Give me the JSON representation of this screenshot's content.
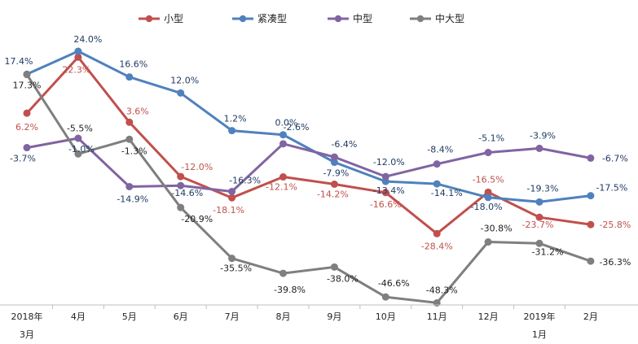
{
  "chart_data": {
    "type": "line",
    "categories": [
      "2018年\n3月",
      "4月",
      "5月",
      "6月",
      "7月",
      "8月",
      "9月",
      "10月",
      "11月",
      "12月",
      "2019年\n1月",
      "2月"
    ],
    "series": [
      {
        "name": "小型",
        "color": "#c0504d",
        "values": [
          6.2,
          22.3,
          3.6,
          -12.0,
          -18.1,
          -12.1,
          -14.2,
          -16.6,
          -28.4,
          -16.5,
          -23.7,
          -25.8
        ]
      },
      {
        "name": "紧凑型",
        "color": "#4f81bd",
        "values": [
          17.4,
          24.0,
          16.6,
          12.0,
          1.2,
          0.0,
          -7.9,
          -13.4,
          -14.1,
          -18.0,
          -19.3,
          -17.5
        ]
      },
      {
        "name": "中型",
        "color": "#8064a2",
        "values": [
          -3.7,
          -1.0,
          -14.9,
          -14.6,
          -16.3,
          -2.6,
          -6.4,
          -12.0,
          -8.4,
          -5.1,
          -3.9,
          -6.7
        ]
      },
      {
        "name": "中大型",
        "color": "#7f7f7f",
        "values": [
          17.3,
          -5.5,
          -1.3,
          -20.9,
          -35.5,
          -39.8,
          -38.0,
          -46.6,
          -48.3,
          -30.8,
          -31.2,
          -36.3
        ]
      }
    ],
    "data_labels": [
      [
        "6.2%",
        "22.3%",
        "3.6%",
        "-12.0%",
        "-18.1%",
        "-12.1%",
        "-14.2%",
        "-16.6%",
        "-28.4%",
        "-16.5%",
        "-23.7%",
        "-25.8%"
      ],
      [
        "17.4%",
        "24.0%",
        "16.6%",
        "12.0%",
        "1.2%",
        "0.0%",
        "-7.9%",
        "-13.4%",
        "-14.1%",
        "-18.0%",
        "-19.3%",
        "-17.5%"
      ],
      [
        "-3.7%",
        "-1.0%",
        "-14.9%",
        "-14.6%",
        "-16.3%",
        "-2.6%",
        "-6.4%",
        "-12.0%",
        "-8.4%",
        "-5.1%",
        "-3.9%",
        "-6.7%"
      ],
      [
        "17.3%",
        "-5.5%",
        "-1.3%",
        "-20.9%",
        "-35.5%",
        "-39.8%",
        "-38.0%",
        "-46.6%",
        "-48.3%",
        "-30.8%",
        "-31.2%",
        "-36.3%"
      ]
    ],
    "legend_position": "top",
    "grid": false
  }
}
